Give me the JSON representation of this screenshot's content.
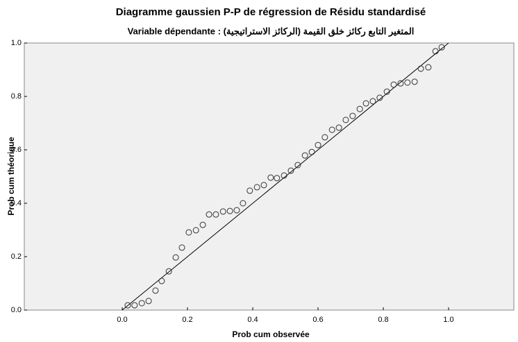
{
  "chart_data": {
    "type": "scatter",
    "title": "Diagramme gaussien P-P de régression de Résidu standardisé",
    "subtitle": "Variable dépendante : (المتغير التابع ركائز خلق القيمة (الركائز الاستراتيجية",
    "x_label": "Prob cum observée",
    "y_label": "Prob cum théorique",
    "xlim": [
      -0.3,
      1.2
    ],
    "ylim": [
      0,
      1
    ],
    "xticks": [
      {
        "value": 0,
        "label": "0.0"
      },
      {
        "value": 0.2,
        "label": "0.2"
      },
      {
        "value": 0.4,
        "label": "0.4"
      },
      {
        "value": 0.6,
        "label": "0.6"
      },
      {
        "value": 0.8,
        "label": "0.8"
      },
      {
        "value": 1,
        "label": "1.0"
      }
    ],
    "yticks": [
      {
        "value": 0,
        "label": "0.0"
      },
      {
        "value": 0.2,
        "label": "0.2"
      },
      {
        "value": 0.4,
        "label": "0.4"
      },
      {
        "value": 0.6,
        "label": "0.6"
      },
      {
        "value": 0.8,
        "label": "0.8"
      },
      {
        "value": 1,
        "label": "1.0"
      }
    ],
    "color": "#333333",
    "background": "#f0f0f0",
    "reference_line": true,
    "x": [
      0.017,
      0.038,
      0.06,
      0.081,
      0.102,
      0.121,
      0.143,
      0.164,
      0.183,
      0.204,
      0.226,
      0.247,
      0.266,
      0.287,
      0.309,
      0.33,
      0.351,
      0.37,
      0.391,
      0.413,
      0.434,
      0.455,
      0.474,
      0.496,
      0.517,
      0.538,
      0.56,
      0.581,
      0.6,
      0.621,
      0.643,
      0.664,
      0.685,
      0.706,
      0.728,
      0.747,
      0.768,
      0.789,
      0.811,
      0.832,
      0.853,
      0.874,
      0.896,
      0.915,
      0.938,
      0.96,
      0.979
    ],
    "values": [
      0.018,
      0.018,
      0.026,
      0.034,
      0.073,
      0.109,
      0.145,
      0.197,
      0.234,
      0.291,
      0.299,
      0.319,
      0.358,
      0.358,
      0.369,
      0.371,
      0.374,
      0.4,
      0.447,
      0.46,
      0.468,
      0.496,
      0.494,
      0.504,
      0.522,
      0.543,
      0.579,
      0.592,
      0.618,
      0.647,
      0.675,
      0.683,
      0.712,
      0.727,
      0.753,
      0.774,
      0.782,
      0.795,
      0.818,
      0.844,
      0.849,
      0.852,
      0.855,
      0.904,
      0.909,
      0.969,
      0.984
    ]
  }
}
